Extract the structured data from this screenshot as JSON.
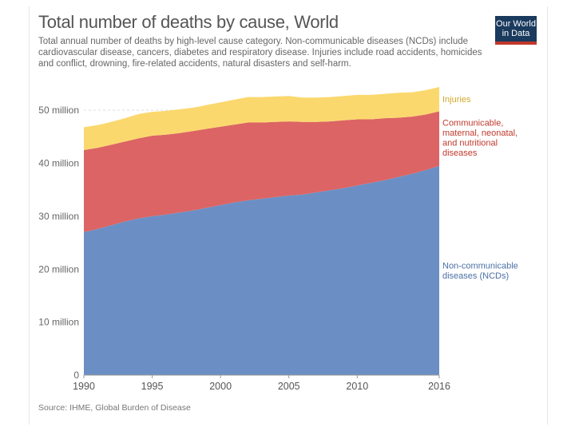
{
  "header": {
    "title": "Total number of deaths by cause, World",
    "subtitle": "Total annual number of deaths by high-level cause category. Non-communicable diseases (NCDs) include cardiovascular disease, cancers, diabetes and respiratory disease. Injuries include road accidents, homicides and conflict, drowning, fire-related accidents, natural disasters and self-harm.",
    "logo_line1": "Our World",
    "logo_line2": "in Data"
  },
  "footer": {
    "source": "Source: IHME, Global Burden of Disease"
  },
  "colors": {
    "ncd": "#6b8fc4",
    "communicable": "#dc6464",
    "injuries": "#fbd86e",
    "grid": "#dddddd"
  },
  "chart_data": {
    "type": "area",
    "stacked": true,
    "title": "Total number of deaths by cause, World",
    "x": [
      1990,
      1991,
      1992,
      1993,
      1994,
      1995,
      1996,
      1997,
      1998,
      1999,
      2000,
      2001,
      2002,
      2003,
      2004,
      2005,
      2006,
      2007,
      2008,
      2009,
      2010,
      2011,
      2012,
      2013,
      2014,
      2015,
      2016
    ],
    "ylim": [
      0,
      55
    ],
    "yticks": [
      0,
      10,
      20,
      30,
      40,
      50
    ],
    "ytick_labels": [
      "0",
      "10 million",
      "20 million",
      "30 million",
      "40 million",
      "50 million"
    ],
    "xticks": [
      1990,
      1995,
      2000,
      2005,
      2010,
      2016
    ],
    "xtick_labels": [
      "1990",
      "1995",
      "2000",
      "2005",
      "2010",
      "2016"
    ],
    "series": [
      {
        "name": "Non-communicable diseases (NCDs)",
        "label_lines": [
          "Non-communicable",
          "diseases (NCDs)"
        ],
        "color": "#6b8fc4",
        "label_color": "#4a6fa5",
        "values": [
          27.0,
          27.6,
          28.3,
          29.0,
          29.6,
          30.0,
          30.3,
          30.7,
          31.1,
          31.6,
          32.1,
          32.6,
          33.0,
          33.3,
          33.6,
          33.9,
          34.1,
          34.5,
          34.9,
          35.3,
          35.8,
          36.3,
          36.8,
          37.4,
          38.0,
          38.7,
          39.5
        ]
      },
      {
        "name": "Communicable, maternal, neonatal, and nutritional diseases",
        "label_lines": [
          "Communicable,",
          "maternal, neonatal,",
          "and nutritional",
          "diseases"
        ],
        "color": "#dc6464",
        "label_color": "#c0392b",
        "values": [
          15.5,
          15.3,
          15.2,
          15.1,
          15.1,
          15.2,
          15.1,
          15.0,
          15.0,
          14.9,
          14.8,
          14.7,
          14.7,
          14.4,
          14.2,
          14.0,
          13.7,
          13.3,
          13.0,
          12.8,
          12.5,
          12.0,
          11.7,
          11.2,
          10.8,
          10.5,
          10.3
        ]
      },
      {
        "name": "Injuries",
        "label_lines": [
          "Injuries"
        ],
        "color": "#fbd86e",
        "label_color": "#d4a72c",
        "values": [
          4.3,
          4.3,
          4.3,
          4.4,
          4.6,
          4.5,
          4.5,
          4.5,
          4.4,
          4.5,
          4.6,
          4.7,
          4.8,
          4.8,
          4.8,
          4.8,
          4.6,
          4.6,
          4.6,
          4.6,
          4.6,
          4.6,
          4.6,
          4.7,
          4.6,
          4.6,
          4.6
        ]
      }
    ]
  }
}
